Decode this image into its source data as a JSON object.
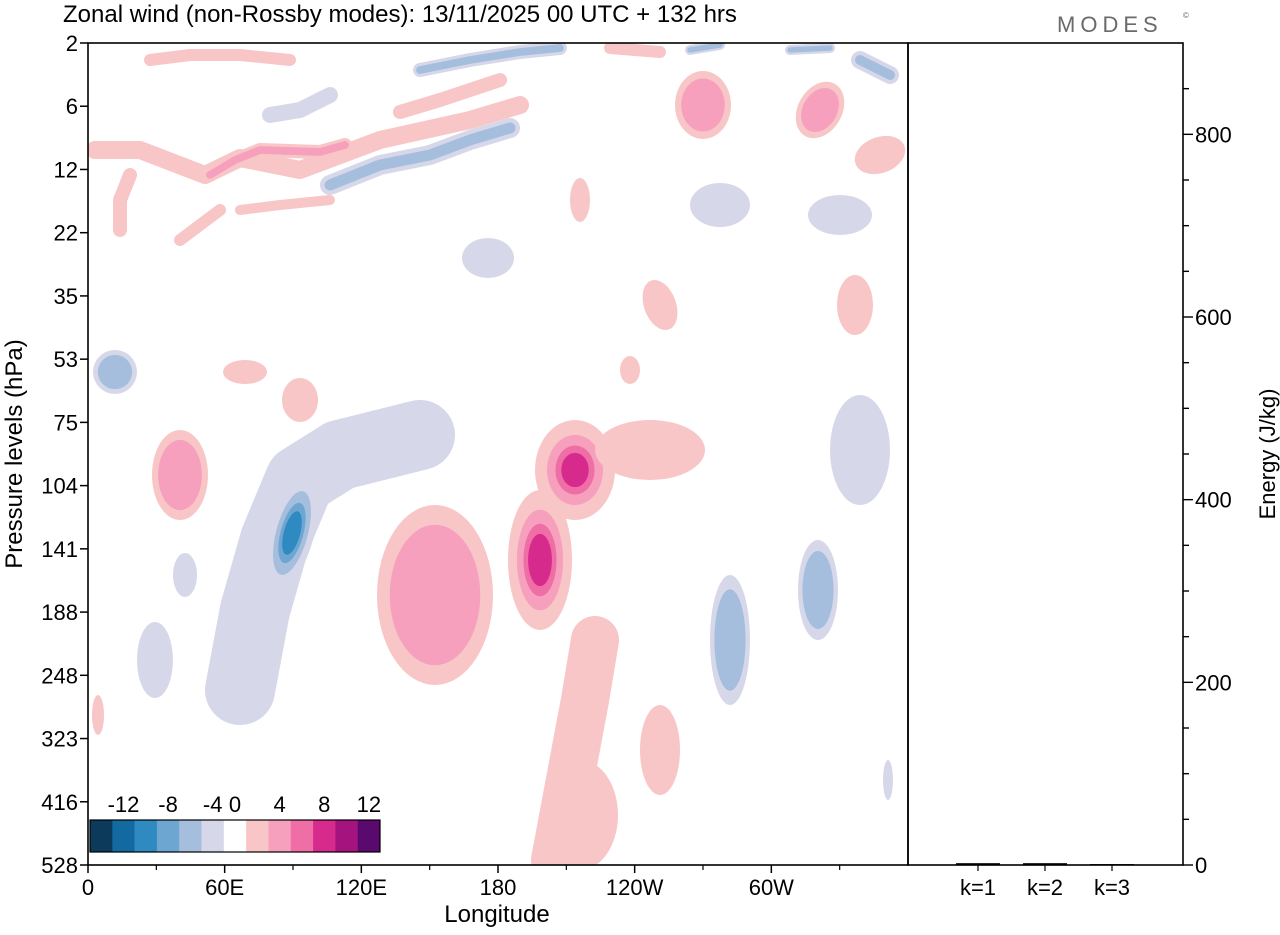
{
  "header": {
    "title": "Zonal wind (non-Rossby modes):  13/11/2025  00 UTC  + 132 hrs",
    "brand": "MODES",
    "brand_mark": "©"
  },
  "chart_data": [
    {
      "type": "heatmap",
      "title": "Zonal wind (non-Rossby modes):  13/11/2025  00 UTC  + 132 hrs",
      "xlabel": "Longitude",
      "ylabel": "Pressure levels (hPa)",
      "x_ticks": [
        "0",
        "60E",
        "120E",
        "180",
        "120W",
        "60W"
      ],
      "y_ticks": [
        "2",
        "6",
        "12",
        "22",
        "35",
        "53",
        "75",
        "104",
        "141",
        "188",
        "248",
        "323",
        "416",
        "528"
      ],
      "colorbar": {
        "levels": [
          -14,
          -12,
          -10,
          -8,
          -6,
          -4,
          -2,
          2,
          4,
          6,
          8,
          10,
          12,
          14
        ],
        "labels": [
          "-12",
          "-8",
          "-4",
          "0",
          "4",
          "8",
          "12"
        ],
        "colors": [
          "#0b3a5a",
          "#136aa0",
          "#2f8ac2",
          "#6ea6d2",
          "#a6bedd",
          "#d6d8ea",
          "#ffffff",
          "#f8c6c6",
          "#f6a0be",
          "#ef6ea6",
          "#d72a8d",
          "#a5137e",
          "#5a0a6e"
        ]
      },
      "features": [
        {
          "name": "negative jet core",
          "lon": 80,
          "level": "141",
          "value": -13
        },
        {
          "name": "positive anomaly",
          "lon": 148,
          "level": "141",
          "value": 6
        },
        {
          "name": "positive anomaly",
          "lon": 198,
          "level": "141",
          "value": 9
        },
        {
          "name": "positive anomaly",
          "lon": 213,
          "level": "104",
          "value": 10
        },
        {
          "name": "negative anomaly",
          "lon": 285,
          "level": "188",
          "value": -6
        },
        {
          "name": "negative anomaly",
          "lon": 317,
          "level": "188",
          "value": -5
        },
        {
          "name": "positive band",
          "lon": 30,
          "level": "12",
          "value": 5
        },
        {
          "name": "negative band",
          "lon": 170,
          "level": "12",
          "value": -6
        }
      ]
    },
    {
      "type": "bar",
      "categories": [
        "k=1",
        "k=2",
        "k=3"
      ],
      "values": [
        2,
        2,
        1
      ],
      "ylabel": "Energy (J/kg)",
      "ylim": [
        0,
        900
      ],
      "y_ticks": [
        "0",
        "200",
        "400",
        "600",
        "800"
      ]
    }
  ]
}
